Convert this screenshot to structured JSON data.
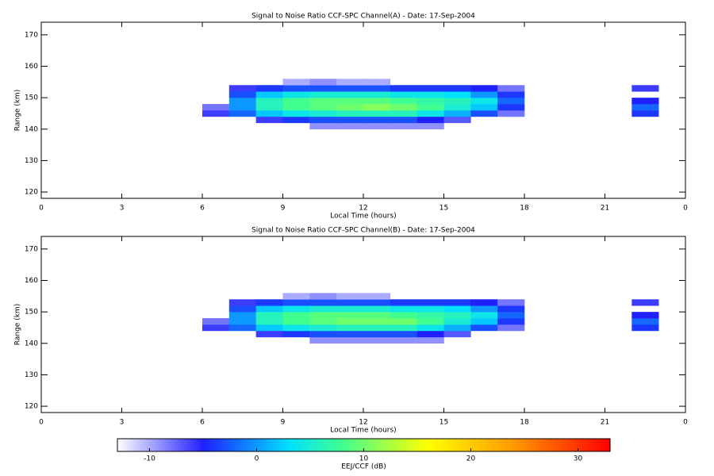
{
  "chart_data": [
    {
      "type": "heatmap",
      "title": "Signal to Noise Ratio CCF-SPC Channel(A) - Date: 17-Sep-2004",
      "xlabel": "Local Time (hours)",
      "ylabel": "Range (km)",
      "xlim": [
        0,
        24
      ],
      "xticks": [
        0,
        3,
        6,
        9,
        12,
        15,
        18,
        21,
        {
          "value": 24,
          "label": "0"
        }
      ],
      "ylim": [
        118,
        174
      ],
      "yticks": [
        120,
        130,
        140,
        150,
        160,
        170
      ],
      "x_bins": [
        0,
        1,
        2,
        3,
        4,
        5,
        6,
        7,
        8,
        9,
        10,
        11,
        12,
        13,
        14,
        15,
        16,
        17,
        18,
        19,
        20,
        21,
        22,
        23,
        24
      ],
      "y_bins": [
        140,
        142,
        144,
        146,
        148,
        150,
        152,
        154,
        156
      ],
      "z": [
        [
          null,
          null,
          null,
          null,
          null,
          null,
          null,
          null,
          null,
          null,
          -9,
          -9,
          -9,
          -9,
          -9,
          null,
          null,
          null,
          null,
          null,
          null,
          null,
          null,
          null
        ],
        [
          null,
          null,
          null,
          null,
          null,
          null,
          null,
          null,
          -6,
          -4,
          -3,
          -3,
          -3,
          -3,
          -5,
          -7,
          null,
          null,
          null,
          null,
          null,
          null,
          null,
          null
        ],
        [
          null,
          null,
          null,
          null,
          null,
          null,
          -6,
          -2,
          2,
          4,
          5,
          6,
          6,
          6,
          4,
          1,
          -3,
          -8,
          null,
          null,
          null,
          null,
          -4,
          null
        ],
        [
          null,
          null,
          null,
          null,
          null,
          null,
          -8,
          0,
          6,
          8,
          9,
          10,
          11,
          10,
          8,
          5,
          2,
          -4,
          null,
          null,
          null,
          null,
          -2,
          null
        ],
        [
          null,
          null,
          null,
          null,
          null,
          null,
          null,
          0,
          6,
          8,
          9,
          9,
          9,
          8,
          7,
          6,
          4,
          -2,
          null,
          null,
          null,
          null,
          -5,
          null
        ],
        [
          null,
          null,
          null,
          null,
          null,
          null,
          null,
          -3,
          2,
          4,
          5,
          5,
          5,
          4,
          4,
          3,
          0,
          -4,
          null,
          null,
          null,
          null,
          null,
          null
        ],
        [
          null,
          null,
          null,
          null,
          null,
          null,
          null,
          -6,
          -4,
          -3,
          -3,
          -3,
          -3,
          -4,
          -4,
          -4,
          -5,
          -8,
          null,
          null,
          null,
          null,
          -6,
          null
        ],
        [
          null,
          null,
          null,
          null,
          null,
          null,
          null,
          null,
          null,
          -10,
          -9,
          -10,
          -10,
          null,
          null,
          null,
          null,
          null,
          null,
          null,
          null,
          null,
          null,
          null
        ]
      ]
    },
    {
      "type": "heatmap",
      "title": "Signal to Noise Ratio CCF-SPC Channel(B) - Date: 17-Sep-2004",
      "xlabel": "Local Time (hours)",
      "ylabel": "Range (km)",
      "xlim": [
        0,
        24
      ],
      "xticks": [
        0,
        3,
        6,
        9,
        12,
        15,
        18,
        21,
        {
          "value": 24,
          "label": "0"
        }
      ],
      "ylim": [
        118,
        174
      ],
      "yticks": [
        120,
        130,
        140,
        150,
        160,
        170
      ],
      "x_bins": [
        0,
        1,
        2,
        3,
        4,
        5,
        6,
        7,
        8,
        9,
        10,
        11,
        12,
        13,
        14,
        15,
        16,
        17,
        18,
        19,
        20,
        21,
        22,
        23,
        24
      ],
      "y_bins": [
        140,
        142,
        144,
        146,
        148,
        150,
        152,
        154,
        156
      ],
      "z": [
        [
          null,
          null,
          null,
          null,
          null,
          null,
          null,
          null,
          null,
          null,
          -9,
          -9,
          -9,
          -9,
          -9,
          null,
          null,
          null,
          null,
          null,
          null,
          null,
          null,
          null
        ],
        [
          null,
          null,
          null,
          null,
          null,
          null,
          null,
          null,
          -6,
          -4,
          -3,
          -3,
          -3,
          -3,
          -5,
          -7,
          null,
          null,
          null,
          null,
          null,
          null,
          null,
          null
        ],
        [
          null,
          null,
          null,
          null,
          null,
          null,
          -6,
          -2,
          2,
          4,
          5,
          6,
          6,
          6,
          4,
          1,
          -3,
          -8,
          null,
          null,
          null,
          null,
          -4,
          null
        ],
        [
          null,
          null,
          null,
          null,
          null,
          null,
          -8,
          0,
          6,
          8,
          9,
          10,
          10,
          10,
          8,
          5,
          2,
          -4,
          null,
          null,
          null,
          null,
          -2,
          null
        ],
        [
          null,
          null,
          null,
          null,
          null,
          null,
          null,
          0,
          6,
          8,
          9,
          9,
          9,
          8,
          7,
          6,
          4,
          -2,
          null,
          null,
          null,
          null,
          -5,
          null
        ],
        [
          null,
          null,
          null,
          null,
          null,
          null,
          null,
          -3,
          2,
          4,
          5,
          5,
          5,
          4,
          4,
          3,
          0,
          -4,
          null,
          null,
          null,
          null,
          null,
          null
        ],
        [
          null,
          null,
          null,
          null,
          null,
          null,
          null,
          -6,
          -4,
          -3,
          -3,
          -3,
          -3,
          -4,
          -4,
          -4,
          -5,
          -8,
          null,
          null,
          null,
          null,
          -6,
          null
        ],
        [
          null,
          null,
          null,
          null,
          null,
          null,
          null,
          null,
          null,
          -10,
          -9,
          -10,
          -10,
          null,
          null,
          null,
          null,
          null,
          null,
          null,
          null,
          null,
          null,
          null
        ]
      ]
    },
    {
      "type": "colorbar",
      "label": "EEJ/CCF (dB)",
      "xlim": [
        -13,
        33
      ],
      "xticks": [
        -10,
        0,
        10,
        20,
        30
      ],
      "colorscale": [
        [
          -13,
          "#ffffff"
        ],
        [
          -5,
          "#2020ff"
        ],
        [
          3,
          "#00e0ff"
        ],
        [
          8,
          "#40ff90"
        ],
        [
          16,
          "#ffff00"
        ],
        [
          24,
          "#ff9900"
        ],
        [
          33,
          "#ff0000"
        ]
      ]
    }
  ]
}
